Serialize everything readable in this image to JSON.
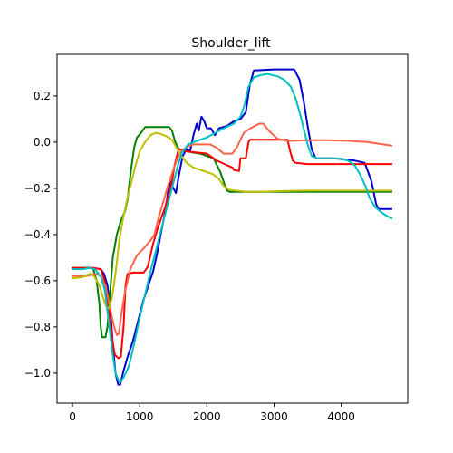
{
  "chart_data": {
    "type": "line",
    "title": "Shoulder_lift",
    "xlabel": "",
    "ylabel": "",
    "xlim": [
      -230,
      4990
    ],
    "ylim": [
      -1.13,
      0.38
    ],
    "xticks": [
      0,
      1000,
      2000,
      3000,
      4000
    ],
    "yticks": [
      -1.0,
      -0.8,
      -0.6,
      -0.4,
      -0.2,
      0.0,
      0.2
    ],
    "xtick_labels": [
      "0",
      "1000",
      "2000",
      "3000",
      "4000"
    ],
    "ytick_labels": [
      "−1.0",
      "−0.8",
      "−0.6",
      "−0.4",
      "−0.2",
      "0.0",
      "0.2"
    ],
    "grid": false,
    "legend": "none",
    "series": [
      {
        "color": "#0000cc",
        "points": [
          [
            0,
            -0.545
          ],
          [
            300,
            -0.545
          ],
          [
            420,
            -0.55
          ],
          [
            470,
            -0.57
          ],
          [
            520,
            -0.62
          ],
          [
            560,
            -0.72
          ],
          [
            600,
            -0.87
          ],
          [
            640,
            -1.0
          ],
          [
            680,
            -1.05
          ],
          [
            710,
            -1.05
          ],
          [
            760,
            -0.99
          ],
          [
            820,
            -0.93
          ],
          [
            900,
            -0.86
          ],
          [
            980,
            -0.77
          ],
          [
            1050,
            -0.69
          ],
          [
            1130,
            -0.62
          ],
          [
            1200,
            -0.56
          ],
          [
            1260,
            -0.48
          ],
          [
            1320,
            -0.39
          ],
          [
            1380,
            -0.3
          ],
          [
            1420,
            -0.22
          ],
          [
            1460,
            -0.17
          ],
          [
            1500,
            -0.2
          ],
          [
            1540,
            -0.22
          ],
          [
            1580,
            -0.15
          ],
          [
            1640,
            -0.06
          ],
          [
            1700,
            -0.03
          ],
          [
            1750,
            -0.04
          ],
          [
            1800,
            0.03
          ],
          [
            1850,
            0.08
          ],
          [
            1880,
            0.05
          ],
          [
            1920,
            0.11
          ],
          [
            1960,
            0.09
          ],
          [
            2000,
            0.06
          ],
          [
            2060,
            0.06
          ],
          [
            2120,
            0.03
          ],
          [
            2180,
            0.06
          ],
          [
            2300,
            0.07
          ],
          [
            2400,
            0.09
          ],
          [
            2500,
            0.1
          ],
          [
            2580,
            0.13
          ],
          [
            2640,
            0.25
          ],
          [
            2700,
            0.31
          ],
          [
            3000,
            0.315
          ],
          [
            3300,
            0.315
          ],
          [
            3380,
            0.27
          ],
          [
            3440,
            0.18
          ],
          [
            3500,
            0.07
          ],
          [
            3560,
            -0.03
          ],
          [
            3620,
            -0.07
          ],
          [
            3750,
            -0.07
          ],
          [
            3900,
            -0.07
          ],
          [
            4050,
            -0.075
          ],
          [
            4200,
            -0.08
          ],
          [
            4350,
            -0.09
          ],
          [
            4400,
            -0.13
          ],
          [
            4450,
            -0.17
          ],
          [
            4520,
            -0.27
          ],
          [
            4560,
            -0.29
          ],
          [
            4600,
            -0.29
          ],
          [
            4750,
            -0.29
          ]
        ]
      },
      {
        "color": "#008000",
        "points": [
          [
            0,
            -0.545
          ],
          [
            260,
            -0.545
          ],
          [
            310,
            -0.55
          ],
          [
            360,
            -0.6
          ],
          [
            400,
            -0.7
          ],
          [
            420,
            -0.8
          ],
          [
            440,
            -0.845
          ],
          [
            490,
            -0.845
          ],
          [
            520,
            -0.8
          ],
          [
            560,
            -0.65
          ],
          [
            600,
            -0.5
          ],
          [
            660,
            -0.4
          ],
          [
            720,
            -0.34
          ],
          [
            780,
            -0.3
          ],
          [
            820,
            -0.25
          ],
          [
            870,
            -0.12
          ],
          [
            920,
            -0.02
          ],
          [
            960,
            0.02
          ],
          [
            1020,
            0.04
          ],
          [
            1080,
            0.065
          ],
          [
            1200,
            0.065
          ],
          [
            1440,
            0.065
          ],
          [
            1480,
            0.05
          ],
          [
            1530,
            0.0
          ],
          [
            1580,
            -0.03
          ],
          [
            1700,
            -0.04
          ],
          [
            1900,
            -0.05
          ],
          [
            2000,
            -0.06
          ],
          [
            2100,
            -0.07
          ],
          [
            2200,
            -0.13
          ],
          [
            2260,
            -0.18
          ],
          [
            2300,
            -0.21
          ],
          [
            2340,
            -0.215
          ],
          [
            2500,
            -0.215
          ],
          [
            3000,
            -0.215
          ],
          [
            3500,
            -0.215
          ],
          [
            4000,
            -0.215
          ],
          [
            4750,
            -0.215
          ]
        ]
      },
      {
        "color": "#ff0000",
        "points": [
          [
            0,
            -0.545
          ],
          [
            300,
            -0.545
          ],
          [
            420,
            -0.55
          ],
          [
            480,
            -0.6
          ],
          [
            540,
            -0.73
          ],
          [
            590,
            -0.85
          ],
          [
            630,
            -0.92
          ],
          [
            680,
            -0.935
          ],
          [
            720,
            -0.93
          ],
          [
            760,
            -0.8
          ],
          [
            790,
            -0.62
          ],
          [
            820,
            -0.57
          ],
          [
            900,
            -0.565
          ],
          [
            1060,
            -0.565
          ],
          [
            1120,
            -0.54
          ],
          [
            1200,
            -0.44
          ],
          [
            1260,
            -0.38
          ],
          [
            1320,
            -0.33
          ],
          [
            1380,
            -0.28
          ],
          [
            1440,
            -0.22
          ],
          [
            1480,
            -0.17
          ],
          [
            1520,
            -0.1
          ],
          [
            1580,
            -0.03
          ],
          [
            1700,
            -0.04
          ],
          [
            1850,
            -0.045
          ],
          [
            2000,
            -0.05
          ],
          [
            2150,
            -0.08
          ],
          [
            2300,
            -0.1
          ],
          [
            2380,
            -0.11
          ],
          [
            2400,
            -0.12
          ],
          [
            2480,
            -0.125
          ],
          [
            2500,
            -0.07
          ],
          [
            2580,
            -0.07
          ],
          [
            2620,
            0.0
          ],
          [
            2640,
            0.01
          ],
          [
            3000,
            0.01
          ],
          [
            3200,
            0.01
          ],
          [
            3240,
            -0.04
          ],
          [
            3280,
            -0.08
          ],
          [
            3320,
            -0.09
          ],
          [
            3500,
            -0.095
          ],
          [
            4000,
            -0.095
          ],
          [
            4750,
            -0.095
          ]
        ]
      },
      {
        "color": "#ff6347",
        "points": [
          [
            0,
            -0.58
          ],
          [
            200,
            -0.58
          ],
          [
            350,
            -0.57
          ],
          [
            420,
            -0.58
          ],
          [
            500,
            -0.63
          ],
          [
            560,
            -0.72
          ],
          [
            620,
            -0.8
          ],
          [
            660,
            -0.835
          ],
          [
            690,
            -0.83
          ],
          [
            720,
            -0.76
          ],
          [
            780,
            -0.65
          ],
          [
            860,
            -0.55
          ],
          [
            960,
            -0.49
          ],
          [
            1060,
            -0.46
          ],
          [
            1150,
            -0.43
          ],
          [
            1220,
            -0.4
          ],
          [
            1280,
            -0.33
          ],
          [
            1360,
            -0.25
          ],
          [
            1420,
            -0.19
          ],
          [
            1500,
            -0.12
          ],
          [
            1560,
            -0.07
          ],
          [
            1620,
            -0.04
          ],
          [
            1700,
            -0.02
          ],
          [
            1800,
            -0.01
          ],
          [
            1950,
            -0.01
          ],
          [
            2050,
            -0.01
          ],
          [
            2150,
            -0.025
          ],
          [
            2250,
            -0.05
          ],
          [
            2380,
            -0.05
          ],
          [
            2450,
            -0.02
          ],
          [
            2550,
            0.04
          ],
          [
            2650,
            0.06
          ],
          [
            2780,
            0.08
          ],
          [
            2840,
            0.08
          ],
          [
            2920,
            0.05
          ],
          [
            3050,
            0.015
          ],
          [
            3200,
            0.005
          ],
          [
            3500,
            0.008
          ],
          [
            3800,
            0.008
          ],
          [
            4100,
            0.006
          ],
          [
            4400,
            0.0
          ],
          [
            4750,
            -0.015
          ]
        ]
      },
      {
        "color": "#bfbf00",
        "points": [
          [
            0,
            -0.59
          ],
          [
            150,
            -0.585
          ],
          [
            260,
            -0.57
          ],
          [
            320,
            -0.58
          ],
          [
            400,
            -0.62
          ],
          [
            450,
            -0.67
          ],
          [
            500,
            -0.71
          ],
          [
            540,
            -0.72
          ],
          [
            590,
            -0.67
          ],
          [
            640,
            -0.57
          ],
          [
            700,
            -0.42
          ],
          [
            760,
            -0.32
          ],
          [
            820,
            -0.24
          ],
          [
            880,
            -0.17
          ],
          [
            940,
            -0.1
          ],
          [
            1000,
            -0.04
          ],
          [
            1080,
            0.0
          ],
          [
            1160,
            0.03
          ],
          [
            1240,
            0.04
          ],
          [
            1320,
            0.035
          ],
          [
            1400,
            0.025
          ],
          [
            1480,
            0.01
          ],
          [
            1560,
            -0.03
          ],
          [
            1620,
            -0.06
          ],
          [
            1700,
            -0.09
          ],
          [
            1800,
            -0.11
          ],
          [
            1900,
            -0.12
          ],
          [
            2000,
            -0.13
          ],
          [
            2100,
            -0.14
          ],
          [
            2180,
            -0.16
          ],
          [
            2250,
            -0.19
          ],
          [
            2320,
            -0.205
          ],
          [
            2420,
            -0.21
          ],
          [
            2600,
            -0.215
          ],
          [
            2800,
            -0.215
          ],
          [
            3100,
            -0.212
          ],
          [
            3500,
            -0.21
          ],
          [
            4000,
            -0.21
          ],
          [
            4500,
            -0.21
          ],
          [
            4750,
            -0.21
          ]
        ]
      },
      {
        "color": "#00bfbf",
        "points": [
          [
            0,
            -0.55
          ],
          [
            150,
            -0.55
          ],
          [
            250,
            -0.545
          ],
          [
            330,
            -0.55
          ],
          [
            420,
            -0.58
          ],
          [
            480,
            -0.64
          ],
          [
            540,
            -0.78
          ],
          [
            600,
            -0.92
          ],
          [
            640,
            -1.0
          ],
          [
            700,
            -1.04
          ],
          [
            760,
            -1.02
          ],
          [
            840,
            -0.97
          ],
          [
            920,
            -0.87
          ],
          [
            1000,
            -0.76
          ],
          [
            1080,
            -0.66
          ],
          [
            1160,
            -0.56
          ],
          [
            1240,
            -0.47
          ],
          [
            1320,
            -0.38
          ],
          [
            1400,
            -0.29
          ],
          [
            1480,
            -0.2
          ],
          [
            1560,
            -0.11
          ],
          [
            1620,
            -0.05
          ],
          [
            1720,
            -0.01
          ],
          [
            1800,
            0.0
          ],
          [
            1900,
            0.01
          ],
          [
            2000,
            0.02
          ],
          [
            2120,
            0.04
          ],
          [
            2250,
            0.06
          ],
          [
            2400,
            0.08
          ],
          [
            2500,
            0.11
          ],
          [
            2560,
            0.16
          ],
          [
            2620,
            0.24
          ],
          [
            2700,
            0.28
          ],
          [
            2800,
            0.29
          ],
          [
            2900,
            0.295
          ],
          [
            3050,
            0.285
          ],
          [
            3150,
            0.27
          ],
          [
            3250,
            0.24
          ],
          [
            3320,
            0.19
          ],
          [
            3380,
            0.13
          ],
          [
            3440,
            0.06
          ],
          [
            3500,
            -0.01
          ],
          [
            3560,
            -0.06
          ],
          [
            3640,
            -0.07
          ],
          [
            3800,
            -0.07
          ],
          [
            4000,
            -0.072
          ],
          [
            4100,
            -0.08
          ],
          [
            4200,
            -0.1
          ],
          [
            4280,
            -0.14
          ],
          [
            4360,
            -0.19
          ],
          [
            4420,
            -0.24
          ],
          [
            4500,
            -0.28
          ],
          [
            4580,
            -0.3
          ],
          [
            4680,
            -0.32
          ],
          [
            4750,
            -0.33
          ]
        ]
      }
    ]
  }
}
